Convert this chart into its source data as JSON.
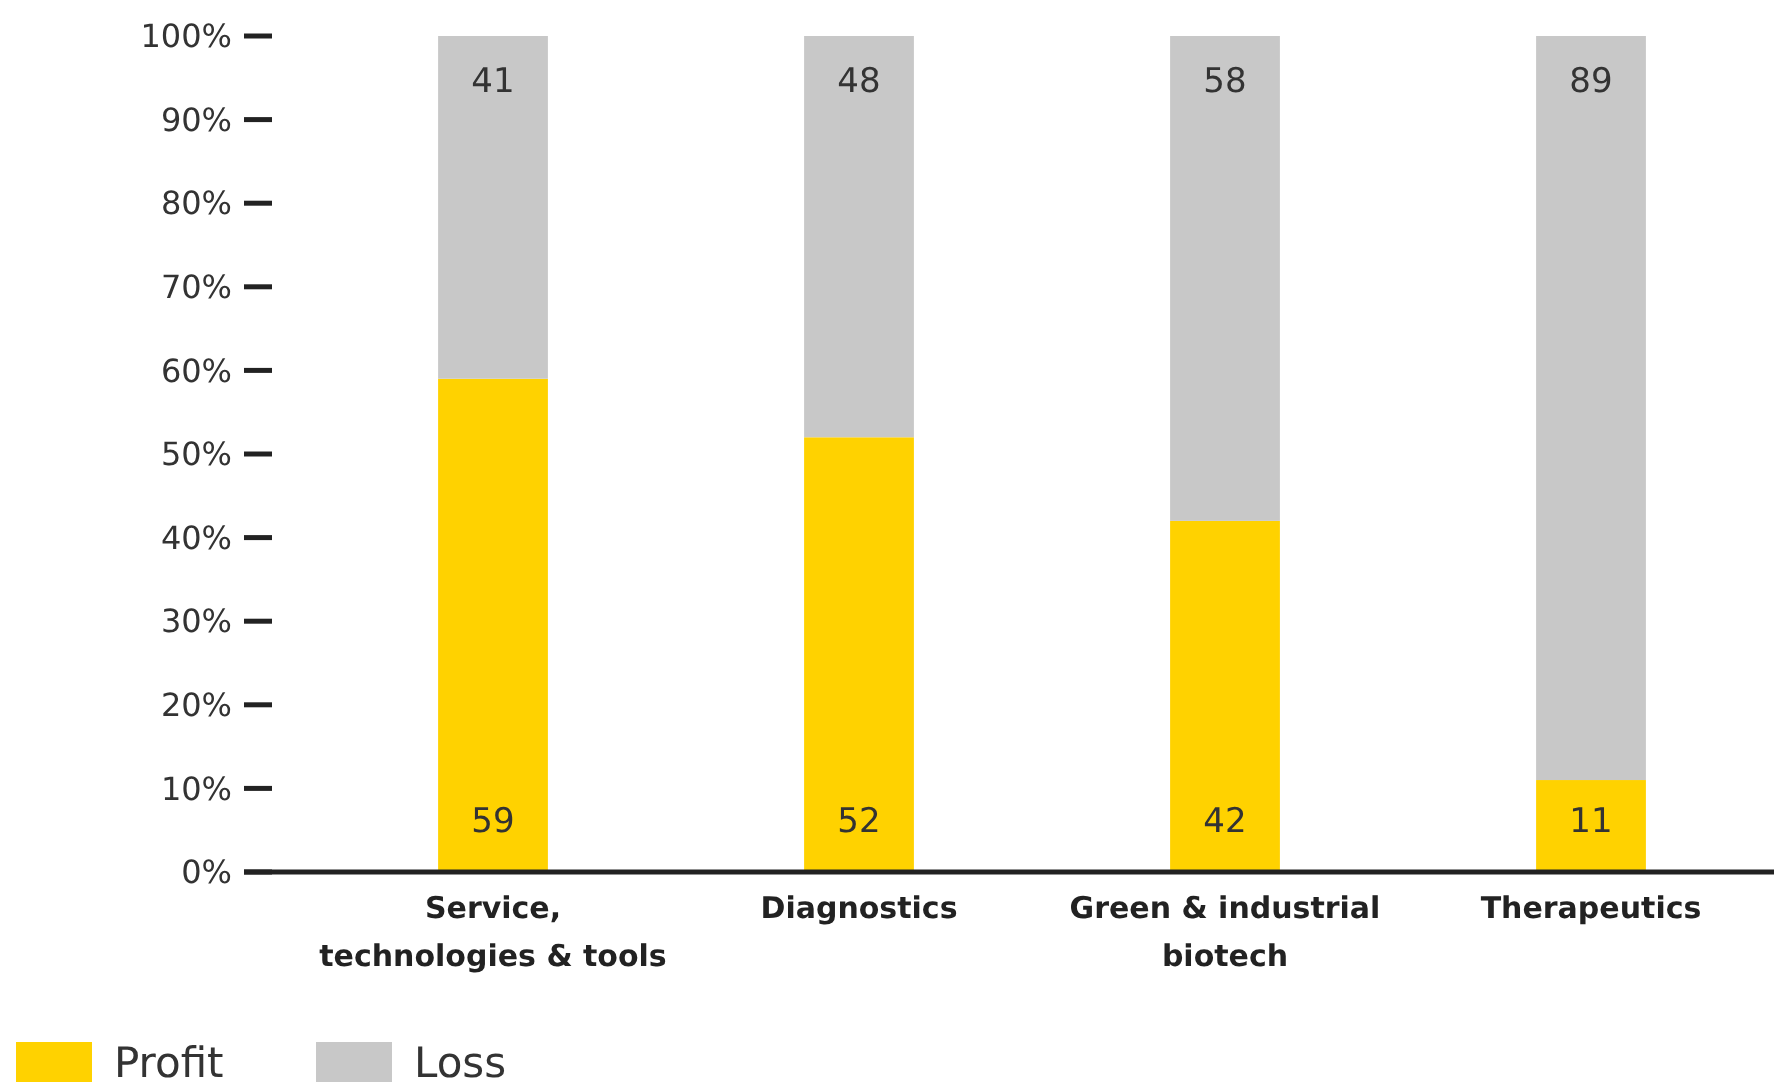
{
  "chart_data": {
    "type": "bar",
    "stacked": true,
    "categories": [
      "Service,\ntechnologies & tools",
      "Diagnostics",
      "Green & industrial\nbiotech",
      "Therapeutics"
    ],
    "series": [
      {
        "name": "Profit",
        "color": "#ffd200",
        "values": [
          59,
          52,
          42,
          11
        ]
      },
      {
        "name": "Loss",
        "color": "#c8c8c8",
        "values": [
          41,
          48,
          58,
          89
        ]
      }
    ],
    "ylim": [
      0,
      100
    ],
    "yticks": [
      {
        "value": 0,
        "label": "0%"
      },
      {
        "value": 10,
        "label": "10%"
      },
      {
        "value": 20,
        "label": "20%"
      },
      {
        "value": 30,
        "label": "30%"
      },
      {
        "value": 40,
        "label": "40%"
      },
      {
        "value": 50,
        "label": "50%"
      },
      {
        "value": 60,
        "label": "60%"
      },
      {
        "value": 70,
        "label": "70%"
      },
      {
        "value": 80,
        "label": "80%"
      },
      {
        "value": 90,
        "label": "90%"
      },
      {
        "value": 100,
        "label": "100%"
      }
    ],
    "data_labels": true,
    "grid": false,
    "legend": "bottom left"
  }
}
